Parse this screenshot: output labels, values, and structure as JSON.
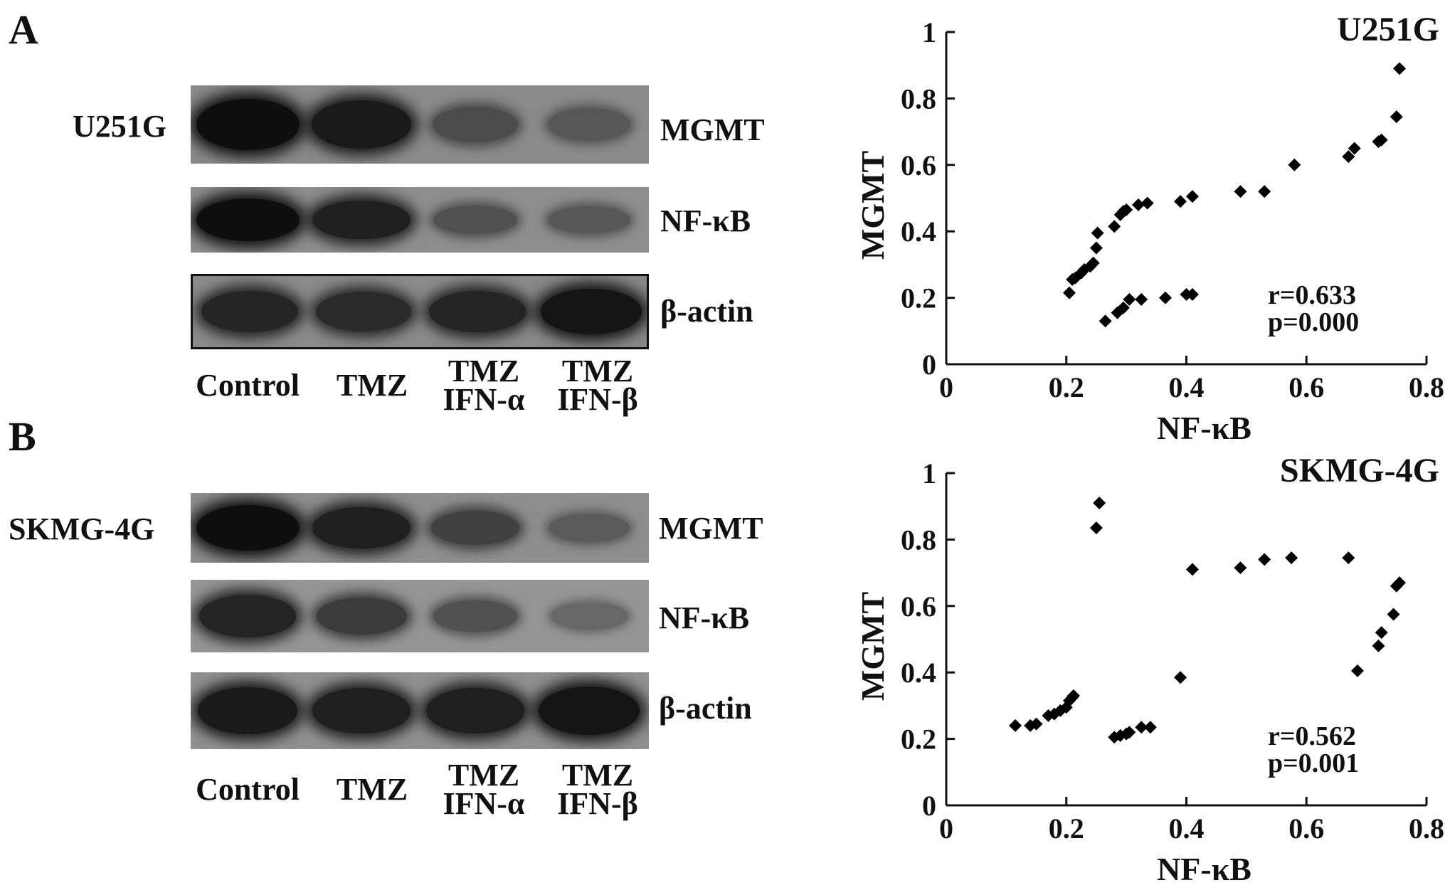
{
  "panels": [
    {
      "letter": "A",
      "cell_line": "U251G",
      "blots": [
        {
          "label": "MGMT",
          "bg": "#8a8a8a",
          "intensity": [
            1.0,
            0.9,
            0.45,
            0.35
          ]
        },
        {
          "label": "NF-κB",
          "bg": "#8e8e8e",
          "intensity": [
            1.0,
            0.85,
            0.4,
            0.35
          ]
        },
        {
          "label": "β-actin",
          "bg": "#8a8a8a",
          "intensity": [
            0.8,
            0.75,
            0.8,
            0.95
          ]
        }
      ],
      "lanes": [
        [
          "Control"
        ],
        [
          "TMZ"
        ],
        [
          "TMZ",
          "IFN-α"
        ],
        [
          "TMZ",
          "IFN-β"
        ]
      ]
    },
    {
      "letter": "B",
      "cell_line": "SKMG-4G",
      "blots": [
        {
          "label": "MGMT",
          "bg": "#8e8e8e",
          "intensity": [
            1.0,
            0.85,
            0.55,
            0.3
          ]
        },
        {
          "label": "NF-κB",
          "bg": "#959595",
          "intensity": [
            0.8,
            0.6,
            0.4,
            0.2
          ]
        },
        {
          "label": "β-actin",
          "bg": "#909090",
          "intensity": [
            0.9,
            0.85,
            0.85,
            0.95
          ]
        }
      ],
      "lanes": [
        [
          "Control"
        ],
        [
          "TMZ"
        ],
        [
          "TMZ",
          "IFN-α"
        ],
        [
          "TMZ",
          "IFN-β"
        ]
      ]
    }
  ],
  "chart_data": [
    {
      "type": "scatter",
      "title": "U251G",
      "xlabel": "NF-κB",
      "ylabel": "MGMT",
      "xlim": [
        0,
        0.8
      ],
      "ylim": [
        0,
        1
      ],
      "xticks": [
        "0",
        "0.2",
        "0.4",
        "0.6",
        "0.8"
      ],
      "yticks": [
        "0",
        "0.2",
        "0.4",
        "0.6",
        "0.8",
        "1"
      ],
      "annotation": [
        "r=0.633",
        "p=0.000"
      ],
      "grid": false,
      "points": [
        [
          0.205,
          0.215
        ],
        [
          0.21,
          0.255
        ],
        [
          0.215,
          0.26
        ],
        [
          0.225,
          0.275
        ],
        [
          0.23,
          0.285
        ],
        [
          0.24,
          0.295
        ],
        [
          0.245,
          0.305
        ],
        [
          0.25,
          0.35
        ],
        [
          0.252,
          0.395
        ],
        [
          0.28,
          0.415
        ],
        [
          0.29,
          0.45
        ],
        [
          0.295,
          0.46
        ],
        [
          0.3,
          0.465
        ],
        [
          0.32,
          0.48
        ],
        [
          0.335,
          0.485
        ],
        [
          0.39,
          0.49
        ],
        [
          0.41,
          0.505
        ],
        [
          0.49,
          0.52
        ],
        [
          0.53,
          0.52
        ],
        [
          0.58,
          0.6
        ],
        [
          0.67,
          0.625
        ],
        [
          0.68,
          0.65
        ],
        [
          0.72,
          0.67
        ],
        [
          0.725,
          0.675
        ],
        [
          0.75,
          0.745
        ],
        [
          0.755,
          0.89
        ],
        [
          0.265,
          0.13
        ],
        [
          0.285,
          0.155
        ],
        [
          0.295,
          0.17
        ],
        [
          0.305,
          0.195
        ],
        [
          0.325,
          0.195
        ],
        [
          0.365,
          0.2
        ],
        [
          0.4,
          0.21
        ],
        [
          0.41,
          0.21
        ]
      ]
    },
    {
      "type": "scatter",
      "title": "SKMG-4G",
      "xlabel": "NF-κB",
      "ylabel": "MGMT",
      "xlim": [
        0,
        0.8
      ],
      "ylim": [
        0,
        1
      ],
      "xticks": [
        "0",
        "0.2",
        "0.4",
        "0.6",
        "0.8"
      ],
      "yticks": [
        "0",
        "0.2",
        "0.4",
        "0.6",
        "0.8",
        "1"
      ],
      "annotation": [
        "r=0.562",
        "p=0.001"
      ],
      "grid": false,
      "points": [
        [
          0.115,
          0.24
        ],
        [
          0.14,
          0.24
        ],
        [
          0.15,
          0.245
        ],
        [
          0.17,
          0.27
        ],
        [
          0.18,
          0.275
        ],
        [
          0.19,
          0.285
        ],
        [
          0.2,
          0.295
        ],
        [
          0.205,
          0.315
        ],
        [
          0.21,
          0.325
        ],
        [
          0.212,
          0.33
        ],
        [
          0.25,
          0.835
        ],
        [
          0.255,
          0.91
        ],
        [
          0.28,
          0.205
        ],
        [
          0.29,
          0.21
        ],
        [
          0.3,
          0.215
        ],
        [
          0.305,
          0.22
        ],
        [
          0.325,
          0.235
        ],
        [
          0.34,
          0.235
        ],
        [
          0.39,
          0.385
        ],
        [
          0.41,
          0.71
        ],
        [
          0.49,
          0.715
        ],
        [
          0.53,
          0.74
        ],
        [
          0.575,
          0.745
        ],
        [
          0.67,
          0.745
        ],
        [
          0.685,
          0.405
        ],
        [
          0.72,
          0.48
        ],
        [
          0.725,
          0.52
        ],
        [
          0.745,
          0.575
        ],
        [
          0.75,
          0.66
        ],
        [
          0.755,
          0.67
        ]
      ]
    }
  ]
}
